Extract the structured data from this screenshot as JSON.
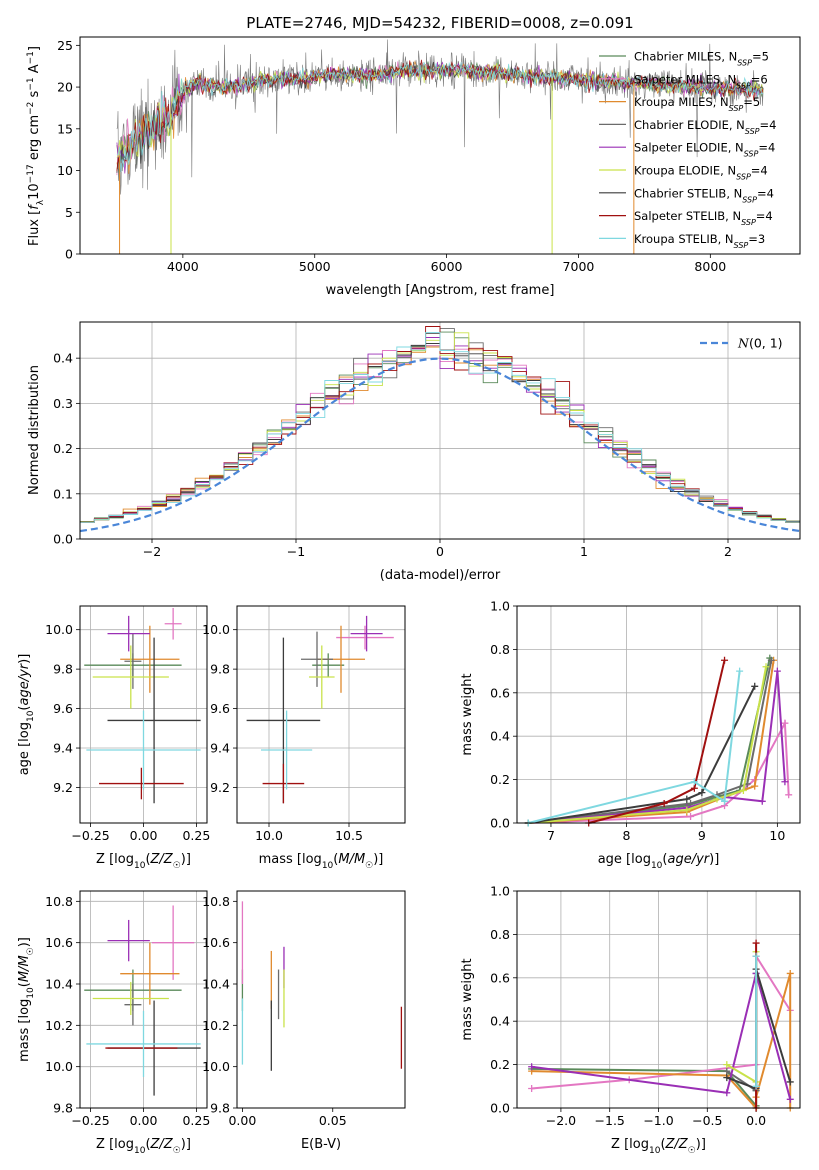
{
  "figure": {
    "title": "PLATE=2746, MJD=54232, FIBERID=0008, z=0.091"
  },
  "colors": {
    "Chabrier MILES": "#5a8a5a",
    "Salpeter MILES": "#e377c2",
    "Kroupa MILES": "#e08a2e",
    "Chabrier ELODIE": "#6b6b6b",
    "Salpeter ELODIE": "#9a2fb5",
    "Kroupa ELODIE": "#c9e24a",
    "Chabrier STELIB": "#3c3c3c",
    "Salpeter STELIB": "#a01010",
    "Kroupa STELIB": "#7fd8e0"
  },
  "chart_data": [
    {
      "id": "spectrum",
      "type": "line",
      "title": "PLATE=2746, MJD=54232, FIBERID=0008, z=0.091",
      "xlabel": "wavelength [Angstrom, rest frame]",
      "ylabel": "Flux [f_λ10^-17 erg cm^-2 s^-1 A^-1]",
      "xlim": [
        3220,
        8680
      ],
      "ylim": [
        0,
        26
      ],
      "xticks": [
        4000,
        5000,
        6000,
        7000,
        8000
      ],
      "yticks": [
        0,
        5,
        10,
        15,
        20,
        25
      ],
      "grid": false,
      "legend_position": "top-right",
      "legend": [
        "Chabrier MILES, N_SSP=5",
        "Salpeter MILES, N_SSP=6",
        "Kroupa MILES, N_SSP=5",
        "Chabrier ELODIE, N_SSP=4",
        "Salpeter ELODIE, N_SSP=4",
        "Kroupa ELODIE, N_SSP=4",
        "Chabrier STELIB, N_SSP=4",
        "Salpeter STELIB, N_SSP=4",
        "Kroupa STELIB, N_SSP=3"
      ],
      "data_range_x": [
        3500,
        8400
      ],
      "continuum": {
        "x": [
          3500,
          3700,
          3900,
          4000,
          4100,
          4300,
          4500,
          4700,
          4900,
          5100,
          5300,
          5500,
          5700,
          5900,
          6100,
          6300,
          6500,
          6700,
          6900,
          7100,
          7300,
          7500,
          7700,
          7900,
          8100,
          8300,
          8400
        ],
        "y": [
          11.5,
          14.0,
          16.5,
          19.5,
          20.5,
          20.0,
          20.5,
          21.0,
          21.0,
          21.5,
          21.5,
          21.5,
          22.0,
          22.0,
          22.0,
          21.8,
          21.5,
          21.2,
          21.0,
          20.8,
          20.5,
          20.5,
          20.2,
          20.0,
          19.8,
          19.8,
          19.6
        ]
      }
    },
    {
      "id": "residuals",
      "type": "area",
      "xlabel": "(data-model)/error",
      "ylabel": "Normed distribution",
      "xlim": [
        -2.5,
        2.5
      ],
      "ylim": [
        0,
        0.48
      ],
      "xticks": [
        -2,
        -1,
        0,
        1,
        2
      ],
      "yticks": [
        0.0,
        0.1,
        0.2,
        0.3,
        0.4
      ],
      "grid": true,
      "legend": [
        "N(0,1)"
      ],
      "legend_position": "top-right"
    },
    {
      "id": "age_vs_Z",
      "type": "scatter",
      "xlabel": "Z [log10(Z/Z☉)]",
      "ylabel": "age [log10(age/yr)]",
      "xlim": [
        -0.3,
        0.3
      ],
      "ylim": [
        9.02,
        10.12
      ],
      "xticks": [
        -0.25,
        0.0,
        0.25
      ],
      "yticks": [
        9.2,
        9.4,
        9.6,
        9.8,
        10.0
      ],
      "grid": true,
      "points": [
        {
          "model": "Chabrier MILES",
          "x": -0.05,
          "y": 9.82,
          "xerr": 0.23,
          "yerr": 0.06
        },
        {
          "model": "Salpeter MILES",
          "x": 0.14,
          "y": 10.03,
          "xerr": 0.04,
          "yerr": 0.08
        },
        {
          "model": "Kroupa MILES",
          "x": 0.03,
          "y": 9.85,
          "xerr": 0.14,
          "yerr": 0.17
        },
        {
          "model": "Chabrier ELODIE",
          "x": -0.05,
          "y": 9.84,
          "xerr": 0.04,
          "yerr": 0.14
        },
        {
          "model": "Salpeter ELODIE",
          "x": -0.07,
          "y": 9.98,
          "xerr": 0.1,
          "yerr": 0.09
        },
        {
          "model": "Kroupa ELODIE",
          "x": -0.06,
          "y": 9.76,
          "xerr": 0.18,
          "yerr": 0.16
        },
        {
          "model": "Chabrier STELIB",
          "x": 0.05,
          "y": 9.54,
          "xerr": 0.22,
          "yerr": 0.42
        },
        {
          "model": "Salpeter STELIB",
          "x": -0.01,
          "y": 9.22,
          "xerr": 0.2,
          "yerr": 0.08
        },
        {
          "model": "Kroupa STELIB",
          "x": 0.0,
          "y": 9.39,
          "xerr": 0.27,
          "yerr": 0.2
        }
      ]
    },
    {
      "id": "age_vs_mass",
      "type": "scatter",
      "xlabel": "mass [log10(M/M☉)]",
      "ylabel": "",
      "xlim": [
        9.8,
        10.85
      ],
      "ylim": [
        9.02,
        10.12
      ],
      "xticks": [
        10.0,
        10.5
      ],
      "yticks": [
        9.2,
        9.4,
        9.6,
        9.8,
        10.0
      ],
      "grid": true,
      "points": [
        {
          "model": "Chabrier MILES",
          "x": 10.37,
          "y": 9.82,
          "xerr": 0.1,
          "yerr": 0.06
        },
        {
          "model": "Salpeter MILES",
          "x": 10.6,
          "y": 9.96,
          "xerr": 0.18,
          "yerr": 0.06
        },
        {
          "model": "Kroupa MILES",
          "x": 10.45,
          "y": 9.85,
          "xerr": 0.15,
          "yerr": 0.17
        },
        {
          "model": "Chabrier ELODIE",
          "x": 10.3,
          "y": 9.85,
          "xerr": 0.1,
          "yerr": 0.14
        },
        {
          "model": "Salpeter ELODIE",
          "x": 10.61,
          "y": 9.98,
          "xerr": 0.1,
          "yerr": 0.09
        },
        {
          "model": "Kroupa ELODIE",
          "x": 10.33,
          "y": 9.76,
          "xerr": 0.08,
          "yerr": 0.16
        },
        {
          "model": "Chabrier STELIB",
          "x": 10.09,
          "y": 9.54,
          "xerr": 0.23,
          "yerr": 0.42
        },
        {
          "model": "Salpeter STELIB",
          "x": 10.09,
          "y": 9.22,
          "xerr": 0.13,
          "yerr": 0.1
        },
        {
          "model": "Kroupa STELIB",
          "x": 10.11,
          "y": 9.39,
          "xerr": 0.16,
          "yerr": 0.2
        }
      ]
    },
    {
      "id": "weight_vs_age",
      "type": "line",
      "xlabel": "age [log10(age/yr)]",
      "ylabel": "mass weight",
      "xlim": [
        6.55,
        10.3
      ],
      "ylim": [
        0,
        1.0
      ],
      "xticks": [
        7,
        8,
        9,
        10
      ],
      "yticks": [
        0.0,
        0.2,
        0.4,
        0.6,
        0.8,
        1.0
      ],
      "grid": true,
      "series": [
        {
          "model": "Chabrier MILES",
          "x": [
            6.7,
            8.8,
            9.5,
            9.9
          ],
          "y": [
            0.0,
            0.08,
            0.15,
            0.76
          ]
        },
        {
          "model": "Salpeter MILES",
          "x": [
            6.7,
            8.85,
            9.3,
            9.7,
            10.1,
            10.15
          ],
          "y": [
            0.0,
            0.03,
            0.08,
            0.2,
            0.46,
            0.13
          ]
        },
        {
          "model": "Kroupa MILES",
          "x": [
            6.7,
            8.8,
            9.3,
            9.7,
            9.95
          ],
          "y": [
            0.0,
            0.05,
            0.12,
            0.17,
            0.75
          ]
        },
        {
          "model": "Chabrier ELODIE",
          "x": [
            6.7,
            8.85,
            9.2,
            9.6,
            9.92
          ],
          "y": [
            0.0,
            0.09,
            0.13,
            0.18,
            0.75
          ]
        },
        {
          "model": "Salpeter ELODIE",
          "x": [
            6.7,
            8.8,
            9.3,
            9.8,
            10.0,
            10.1
          ],
          "y": [
            0.0,
            0.07,
            0.12,
            0.1,
            0.7,
            0.19
          ]
        },
        {
          "model": "Kroupa ELODIE",
          "x": [
            6.7,
            8.8,
            9.2,
            9.55,
            9.85
          ],
          "y": [
            0.0,
            0.06,
            0.11,
            0.15,
            0.72
          ]
        },
        {
          "model": "Chabrier STELIB",
          "x": [
            6.7,
            8.8,
            9.0,
            9.7
          ],
          "y": [
            0.0,
            0.11,
            0.14,
            0.63
          ]
        },
        {
          "model": "Salpeter STELIB",
          "x": [
            7.5,
            8.5,
            8.9,
            9.3
          ],
          "y": [
            0.0,
            0.09,
            0.16,
            0.75
          ]
        },
        {
          "model": "Kroupa STELIB",
          "x": [
            6.7,
            8.9,
            9.3,
            9.5
          ],
          "y": [
            0.0,
            0.19,
            0.1,
            0.7
          ]
        }
      ]
    },
    {
      "id": "mass_vs_Z",
      "type": "scatter",
      "xlabel": "Z [log10(Z/Z☉)]",
      "ylabel": "mass [log10(M/M☉)]",
      "xlim": [
        -0.3,
        0.3
      ],
      "ylim": [
        9.8,
        10.85
      ],
      "xticks": [
        -0.25,
        0.0,
        0.25
      ],
      "yticks": [
        9.8,
        10.0,
        10.2,
        10.4,
        10.6,
        10.8
      ],
      "grid": true,
      "points": [
        {
          "model": "Chabrier MILES",
          "x": -0.05,
          "y": 10.37,
          "xerr": 0.23,
          "yerr": 0.1
        },
        {
          "model": "Salpeter MILES",
          "x": 0.14,
          "y": 10.6,
          "xerr": 0.1,
          "yerr": 0.18
        },
        {
          "model": "Kroupa MILES",
          "x": 0.03,
          "y": 10.45,
          "xerr": 0.14,
          "yerr": 0.15
        },
        {
          "model": "Chabrier ELODIE",
          "x": -0.05,
          "y": 10.3,
          "xerr": 0.04,
          "yerr": 0.1
        },
        {
          "model": "Salpeter ELODIE",
          "x": -0.07,
          "y": 10.61,
          "xerr": 0.1,
          "yerr": 0.1
        },
        {
          "model": "Kroupa ELODIE",
          "x": -0.06,
          "y": 10.33,
          "xerr": 0.18,
          "yerr": 0.08
        },
        {
          "model": "Chabrier STELIB",
          "x": 0.05,
          "y": 10.09,
          "xerr": 0.22,
          "yerr": 0.23
        },
        {
          "model": "Salpeter STELIB",
          "x": -0.01,
          "y": 10.09,
          "xerr": 0.17,
          "yerr": 0.0
        },
        {
          "model": "Kroupa STELIB",
          "x": 0.0,
          "y": 10.11,
          "xerr": 0.27,
          "yerr": 0.16
        }
      ]
    },
    {
      "id": "mass_vs_EBV",
      "type": "scatter",
      "xlabel": "E(B-V)",
      "ylabel": "",
      "xlim": [
        -0.003,
        0.09
      ],
      "ylim": [
        9.8,
        10.85
      ],
      "xticks": [
        0.0,
        0.05
      ],
      "yticks": [
        9.8,
        10.0,
        10.2,
        10.4,
        10.6,
        10.8
      ],
      "grid": false,
      "points": [
        {
          "model": "Chabrier MILES",
          "x": 0.0,
          "y": 10.37,
          "yerr": 0.1
        },
        {
          "model": "Salpeter MILES",
          "x": 0.0,
          "y": 10.6,
          "yerr": 0.2
        },
        {
          "model": "Kroupa MILES",
          "x": 0.016,
          "y": 10.42,
          "yerr": 0.14
        },
        {
          "model": "Chabrier ELODIE",
          "x": 0.02,
          "y": 10.35,
          "yerr": 0.12
        },
        {
          "model": "Salpeter ELODIE",
          "x": 0.023,
          "y": 10.48,
          "yerr": 0.1
        },
        {
          "model": "Kroupa ELODIE",
          "x": 0.023,
          "y": 10.33,
          "yerr": 0.14
        },
        {
          "model": "Chabrier STELIB",
          "x": 0.016,
          "y": 10.15,
          "yerr": 0.17
        },
        {
          "model": "Salpeter STELIB",
          "x": 0.088,
          "y": 10.14,
          "yerr": 0.15
        },
        {
          "model": "Kroupa STELIB",
          "x": 0.0,
          "y": 10.17,
          "yerr": 0.16
        }
      ]
    },
    {
      "id": "weight_vs_Z",
      "type": "line",
      "xlabel": "Z [log10(Z/Z☉)]",
      "ylabel": "mass weight",
      "xlim": [
        -2.45,
        0.45
      ],
      "ylim": [
        0,
        1.0
      ],
      "xticks": [
        -2.0,
        -1.5,
        -1.0,
        -0.5,
        0.0
      ],
      "yticks": [
        0.0,
        0.2,
        0.4,
        0.6,
        0.8,
        1.0
      ],
      "grid": true,
      "series": [
        {
          "model": "Chabrier MILES",
          "x": [
            -2.3,
            -0.3,
            0.0,
            0.0,
            0.0
          ],
          "y": [
            0.18,
            0.17,
            0.01,
            0.08,
            0.7
          ]
        },
        {
          "model": "Salpeter MILES",
          "x": [
            -2.3,
            -1.3,
            0.0,
            0.0,
            0.35
          ],
          "y": [
            0.09,
            0.13,
            0.2,
            0.7,
            0.45
          ]
        },
        {
          "model": "Kroupa MILES",
          "x": [
            -2.3,
            -0.3,
            0.0,
            0.0,
            0.35,
            0.35
          ],
          "y": [
            0.17,
            0.15,
            0.0,
            0.05,
            0.62,
            0.0
          ]
        },
        {
          "model": "Chabrier ELODIE",
          "x": [
            -0.3,
            0.0,
            0.0
          ],
          "y": [
            0.17,
            0.08,
            0.62
          ]
        },
        {
          "model": "Salpeter ELODIE",
          "x": [
            -2.3,
            -0.3,
            0.0,
            0.35
          ],
          "y": [
            0.19,
            0.07,
            0.62,
            0.04
          ]
        },
        {
          "model": "Kroupa ELODIE",
          "x": [
            -0.3,
            0.0,
            0.0
          ],
          "y": [
            0.2,
            0.12,
            0.72
          ]
        },
        {
          "model": "Chabrier STELIB",
          "x": [
            -0.3,
            0.0,
            0.0,
            0.35
          ],
          "y": [
            0.14,
            0.09,
            0.64,
            0.12
          ]
        },
        {
          "model": "Salpeter STELIB",
          "x": [
            0.0,
            0.0
          ],
          "y": [
            0.0,
            0.76
          ]
        },
        {
          "model": "Kroupa STELIB",
          "x": [
            0.0,
            0.0
          ],
          "y": [
            0.1,
            0.7
          ]
        }
      ]
    }
  ]
}
